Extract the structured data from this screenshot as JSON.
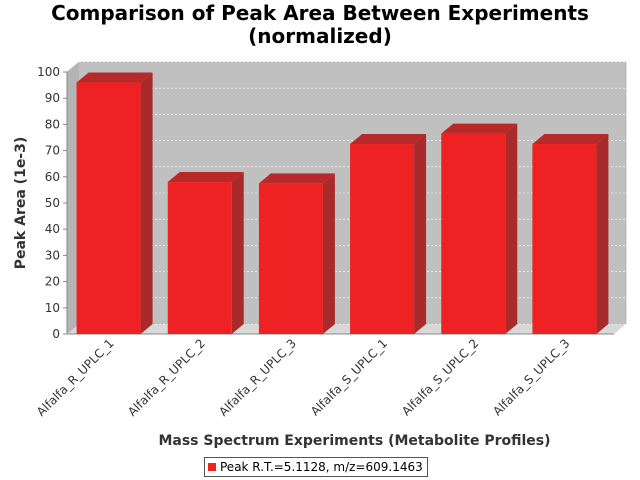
{
  "chart_data": {
    "type": "bar",
    "title": "Comparison of Peak Area Between Experiments",
    "subtitle": "(normalized)",
    "xlabel": "Mass Spectrum Experiments (Metabolite Profiles)",
    "ylabel": "Peak Area (1e-3)",
    "ylim": [
      0,
      100
    ],
    "yticks": [
      0,
      10,
      20,
      30,
      40,
      50,
      60,
      70,
      80,
      90,
      100
    ],
    "grid": true,
    "legend_position": "bottom",
    "three_d": true,
    "categories": [
      "Alfalfa_R_UPLC_1",
      "Alfalfa_R_UPLC_2",
      "Alfalfa_R_UPLC_3",
      "Alfalfa_S_UPLC_1",
      "Alfalfa_S_UPLC_2",
      "Alfalfa_S_UPLC_3"
    ],
    "series": [
      {
        "name": "Peak R.T.=5.1128, m/z=609.1463",
        "values": [
          96,
          58,
          57.5,
          72.5,
          76.5,
          72.5
        ],
        "color": "#ee2222"
      }
    ]
  },
  "colors": {
    "plot_background": "#c0c0c0",
    "bar": "#ee2222",
    "bar_top": "#b82a2a",
    "bar_side": "#a82a2a"
  }
}
